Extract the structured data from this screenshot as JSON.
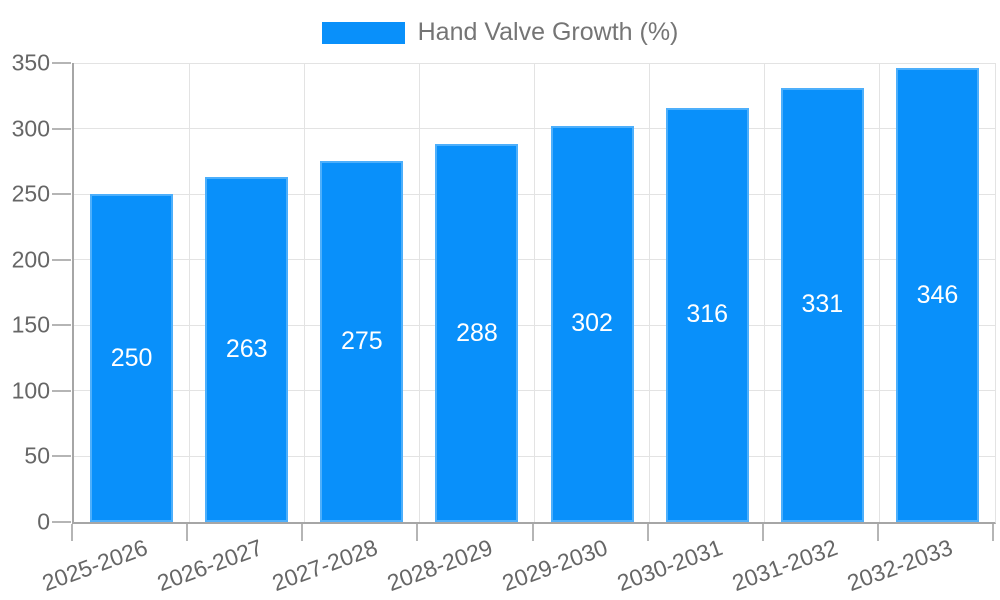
{
  "chart_data": {
    "type": "bar",
    "title": "Hand Valve Growth (%)",
    "legend_label": "Hand Valve Growth (%)",
    "legend_position": "top",
    "categories": [
      "2025-2026",
      "2026-2027",
      "2027-2028",
      "2028-2029",
      "2029-2030",
      "2030-2031",
      "2031-2032",
      "2032-2033"
    ],
    "series": [
      {
        "name": "Hand Valve Growth (%)",
        "values": [
          250,
          263,
          275,
          288,
          302,
          316,
          331,
          346
        ]
      }
    ],
    "xlabel": "",
    "ylabel": "",
    "ylim": [
      0,
      350
    ],
    "yticks": [
      0,
      50,
      100,
      150,
      200,
      250,
      300,
      350
    ],
    "grid": true,
    "x_label_rotation_deg": -20,
    "bar_value_labels_position": "center",
    "colors": {
      "bar": "#0990fa",
      "bar_value_text": "#ffffff",
      "tick_text": "#666666",
      "legend_text": "#757575",
      "axis": "#a6a6a6",
      "grid": "#e3e3e3",
      "tick_mark": "#b5b5b5",
      "background": "#ffffff"
    }
  }
}
